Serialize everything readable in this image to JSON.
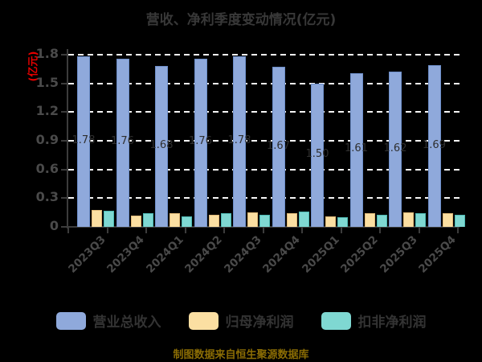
{
  "title": "营收、净利季度变动情况(亿元)",
  "y_axis_unit": "(亿元)",
  "caption": "制图数据来自恒生聚源数据库",
  "colors": {
    "background": "#000000",
    "title_text": "#383838",
    "axis_text": "#4a4a4a",
    "gridline": "#f5f5f5",
    "axis_line": "#3c3c3c",
    "unit_label_red": "#e60000",
    "caption_gold": "#8a6c04"
  },
  "chart_data": {
    "type": "bar",
    "title": "营收、净利季度变动情况(亿元)",
    "ylabel": "(亿元)",
    "xlabel": "",
    "categories": [
      "2023Q3",
      "2023Q4",
      "2024Q1",
      "2024Q2",
      "2024Q3",
      "2024Q4",
      "2025Q1",
      "2025Q2",
      "2025Q3",
      "2025Q4"
    ],
    "series": [
      {
        "name": "营业总收入",
        "color": "#8fa9db",
        "border": "#6d8ec9",
        "values": [
          1.78,
          1.76,
          1.68,
          1.76,
          1.78,
          1.67,
          1.5,
          1.61,
          1.62,
          1.69
        ],
        "value_labels": true
      },
      {
        "name": "归母净利润",
        "color": "#fbdfa2",
        "border": "#dfb877",
        "values": [
          0.18,
          0.12,
          0.14,
          0.13,
          0.15,
          0.14,
          0.11,
          0.14,
          0.15,
          0.14
        ],
        "value_labels": false
      },
      {
        "name": "扣非净利润",
        "color": "#7fd8d2",
        "border": "#4db8b2",
        "values": [
          0.17,
          0.14,
          0.11,
          0.14,
          0.13,
          0.16,
          0.1,
          0.13,
          0.14,
          0.13
        ],
        "value_labels": false
      }
    ],
    "ylim": [
      0,
      1.8
    ],
    "yticks": [
      0,
      0.3,
      0.6,
      0.9,
      1.2,
      1.5,
      1.8
    ],
    "grid": "horizontal-dashed",
    "legend_position": "bottom"
  }
}
